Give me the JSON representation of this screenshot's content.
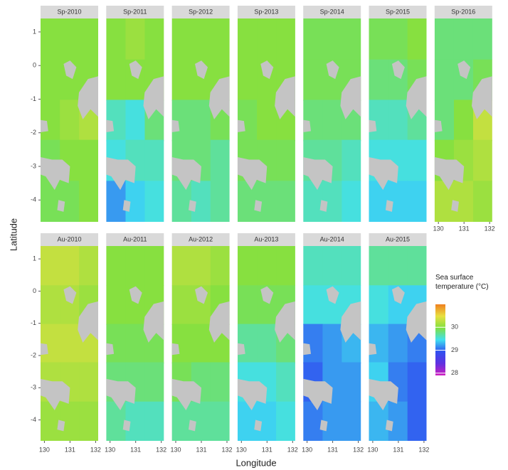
{
  "chart_data": {
    "type": "heatmap",
    "x_label": "Longitude",
    "y_label": "Latitude",
    "xlim": [
      129.85,
      132.1
    ],
    "ylim": [
      -4.65,
      1.4
    ],
    "xticks": [
      130,
      131,
      132
    ],
    "yticks": [
      1,
      0,
      -1,
      -2,
      -3,
      -4
    ],
    "x": [
      130.23,
      130.98,
      131.73
    ],
    "y": [
      0.79,
      -0.43,
      -1.63,
      -2.82,
      -4.04
    ],
    "colorbar": {
      "title": "Sea surface temperature (°C)",
      "lim": [
        27.9,
        31.0
      ],
      "ticks": [
        28,
        29,
        30
      ],
      "colors": [
        "#d020c0",
        "#6030e0",
        "#3050f0",
        "#40e0f0",
        "#80e040",
        "#e8e040",
        "#f08020"
      ]
    },
    "panels": [
      {
        "title": "Sp-2010",
        "values": [
          [
            30.0,
            30.0,
            30.0
          ],
          [
            30.0,
            30.0,
            30.0
          ],
          [
            30.0,
            30.1,
            30.2
          ],
          [
            29.9,
            30.0,
            30.0
          ],
          [
            29.9,
            29.9,
            30.0
          ]
        ]
      },
      {
        "title": "Sp-2011",
        "values": [
          [
            30.0,
            30.1,
            30.0
          ],
          [
            30.0,
            30.0,
            30.0
          ],
          [
            29.6,
            29.5,
            29.8
          ],
          [
            29.5,
            29.6,
            29.6
          ],
          [
            29.2,
            29.4,
            29.5
          ]
        ]
      },
      {
        "title": "Sp-2012",
        "values": [
          [
            30.0,
            30.0,
            30.0
          ],
          [
            30.0,
            30.0,
            30.0
          ],
          [
            29.8,
            29.8,
            29.9
          ],
          [
            29.8,
            29.8,
            29.7
          ],
          [
            29.7,
            29.6,
            29.7
          ]
        ]
      },
      {
        "title": "Sp-2013",
        "values": [
          [
            30.0,
            30.0,
            30.0
          ],
          [
            30.0,
            30.0,
            30.0
          ],
          [
            29.9,
            30.0,
            30.0
          ],
          [
            29.9,
            29.9,
            29.9
          ],
          [
            29.8,
            29.8,
            29.8
          ]
        ]
      },
      {
        "title": "Sp-2014",
        "values": [
          [
            29.9,
            29.9,
            29.9
          ],
          [
            29.9,
            29.9,
            29.9
          ],
          [
            29.8,
            29.8,
            29.8
          ],
          [
            29.7,
            29.7,
            29.6
          ],
          [
            29.6,
            29.6,
            29.5
          ]
        ]
      },
      {
        "title": "Sp-2015",
        "values": [
          [
            29.9,
            29.9,
            30.0
          ],
          [
            29.8,
            29.8,
            29.9
          ],
          [
            29.6,
            29.6,
            29.7
          ],
          [
            29.5,
            29.5,
            29.5
          ],
          [
            29.4,
            29.4,
            29.4
          ]
        ]
      },
      {
        "title": "Sp-2016",
        "values": [
          [
            29.8,
            29.8,
            29.8
          ],
          [
            29.8,
            29.8,
            29.9
          ],
          [
            29.8,
            30.0,
            30.3
          ],
          [
            30.0,
            30.1,
            30.2
          ],
          [
            30.2,
            30.2,
            30.1
          ]
        ]
      },
      {
        "title": "Au-2010",
        "values": [
          [
            30.3,
            30.3,
            30.2
          ],
          [
            30.2,
            30.2,
            30.1
          ],
          [
            30.3,
            30.3,
            30.3
          ],
          [
            30.2,
            30.2,
            30.2
          ],
          [
            30.1,
            30.1,
            30.1
          ]
        ]
      },
      {
        "title": "Au-2011",
        "values": [
          [
            30.0,
            30.0,
            30.0
          ],
          [
            30.0,
            30.0,
            30.0
          ],
          [
            29.9,
            29.9,
            29.9
          ],
          [
            29.8,
            29.8,
            29.8
          ],
          [
            29.7,
            29.6,
            29.6
          ]
        ]
      },
      {
        "title": "Au-2012",
        "values": [
          [
            30.2,
            30.2,
            30.1
          ],
          [
            30.1,
            30.1,
            30.0
          ],
          [
            30.0,
            30.0,
            30.0
          ],
          [
            29.9,
            29.8,
            29.8
          ],
          [
            29.7,
            29.7,
            29.7
          ]
        ]
      },
      {
        "title": "Au-2013",
        "values": [
          [
            30.0,
            30.0,
            30.0
          ],
          [
            29.9,
            29.9,
            29.9
          ],
          [
            29.7,
            29.7,
            29.8
          ],
          [
            29.5,
            29.5,
            29.6
          ],
          [
            29.4,
            29.4,
            29.5
          ]
        ]
      },
      {
        "title": "Au-2014",
        "values": [
          [
            29.6,
            29.6,
            29.6
          ],
          [
            29.5,
            29.5,
            29.5
          ],
          [
            29.1,
            29.2,
            29.3
          ],
          [
            29.0,
            29.2,
            29.2
          ],
          [
            29.1,
            29.2,
            29.2
          ]
        ]
      },
      {
        "title": "Au-2015",
        "values": [
          [
            29.7,
            29.7,
            29.7
          ],
          [
            29.5,
            29.4,
            29.4
          ],
          [
            29.3,
            29.2,
            29.1
          ],
          [
            29.4,
            29.1,
            29.0
          ],
          [
            29.3,
            29.2,
            29.0
          ]
        ]
      }
    ]
  }
}
